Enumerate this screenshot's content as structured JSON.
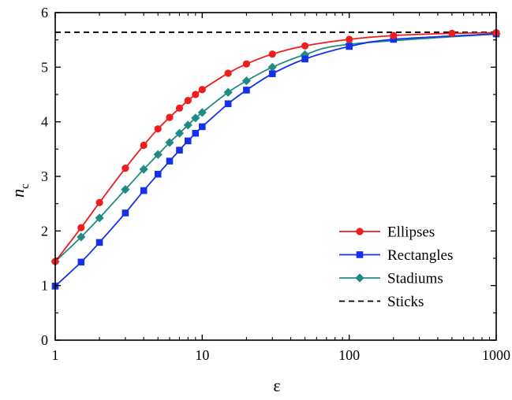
{
  "chart_data": {
    "type": "line",
    "xscale": "log",
    "xlim": [
      1,
      1000
    ],
    "ylim": [
      0,
      6
    ],
    "xticks": [
      1,
      10,
      100,
      1000
    ],
    "xtick_labels": [
      "1",
      "10",
      "100",
      "1000"
    ],
    "yticks": [
      0,
      1,
      2,
      3,
      4,
      5,
      6
    ],
    "ytick_labels": [
      "0",
      "1",
      "2",
      "3",
      "4",
      "5",
      "6"
    ],
    "xlabel": "ε",
    "ylabel": "n",
    "ylabel_sub": "c",
    "grid": false,
    "legend_position": "bottom-right",
    "series": [
      {
        "name": "Ellipses",
        "color": "#ee1c1c",
        "marker": "circle",
        "x": [
          1,
          1.5,
          2,
          3,
          4,
          5,
          6,
          7,
          8,
          9,
          10,
          15,
          20,
          30,
          50,
          100,
          200,
          500,
          1000
        ],
        "y": [
          1.44,
          2.06,
          2.52,
          3.15,
          3.57,
          3.87,
          4.08,
          4.25,
          4.39,
          4.5,
          4.59,
          4.89,
          5.06,
          5.24,
          5.39,
          5.51,
          5.58,
          5.62,
          5.63
        ]
      },
      {
        "name": "Rectangles",
        "color": "#1530e8",
        "marker": "square",
        "x": [
          1,
          1.5,
          2,
          3,
          4,
          5,
          6,
          7,
          8,
          9,
          10,
          15,
          20,
          30,
          50,
          100,
          200,
          1000
        ],
        "y": [
          0.99,
          1.43,
          1.79,
          2.33,
          2.74,
          3.04,
          3.28,
          3.48,
          3.65,
          3.79,
          3.91,
          4.33,
          4.58,
          4.88,
          5.15,
          5.38,
          5.51,
          5.61
        ]
      },
      {
        "name": "Stadiums",
        "color": "#1f8b84",
        "marker": "diamond",
        "x": [
          1,
          1.5,
          2,
          3,
          4,
          5,
          6,
          7,
          8,
          9,
          10,
          15,
          20,
          30,
          50,
          100,
          1000
        ],
        "y": [
          1.44,
          1.89,
          2.24,
          2.76,
          3.13,
          3.4,
          3.62,
          3.79,
          3.94,
          4.07,
          4.17,
          4.54,
          4.75,
          5.0,
          5.23,
          5.42,
          5.61
        ]
      },
      {
        "name": "Sticks",
        "color": "#000000",
        "marker": "none",
        "dashed": true,
        "x": [
          1,
          1000
        ],
        "y": [
          5.64,
          5.64
        ]
      }
    ]
  }
}
